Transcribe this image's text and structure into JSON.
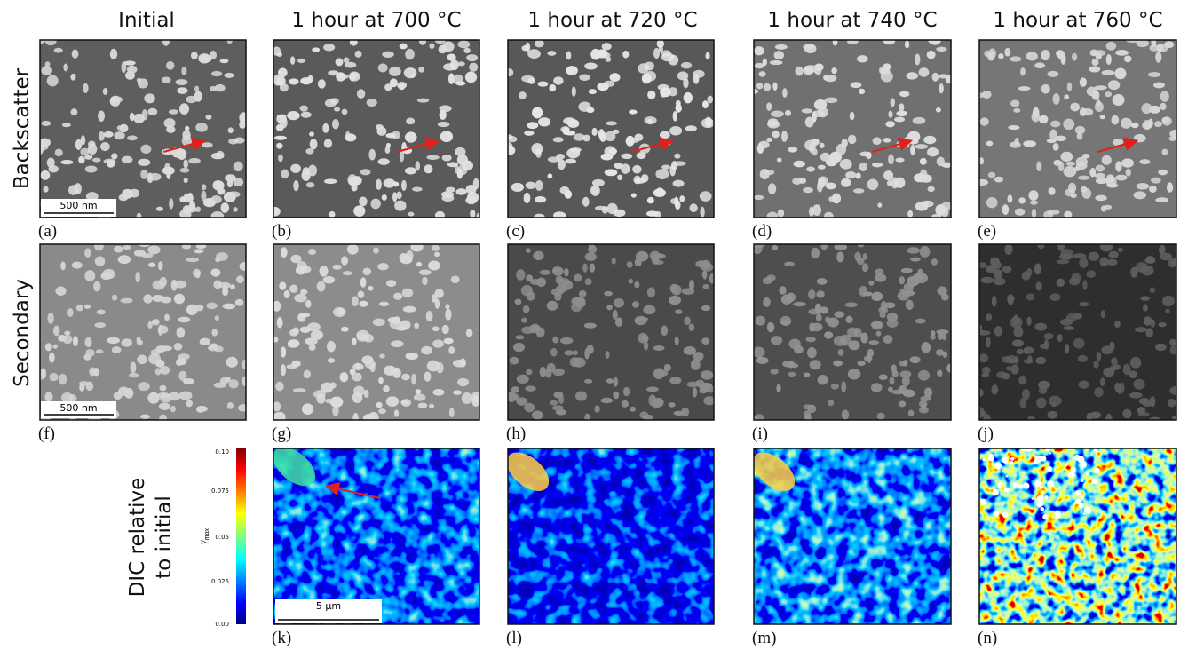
{
  "column_headers": [
    "Initial",
    "1 hour at 700 °C",
    "1 hour at 720 °C",
    "1 hour at 740 °C",
    "1 hour at 760 °C"
  ],
  "row_labels": {
    "backscatter": "Backscatter",
    "secondary": "Secondary",
    "dic": [
      "DIC relative",
      "to initial"
    ]
  },
  "panel_labels": [
    "(a)",
    "(b)",
    "(c)",
    "(d)",
    "(e)",
    "(f)",
    "(g)",
    "(h)",
    "(i)",
    "(j)",
    "(k)",
    "(l)",
    "(m)",
    "(n)"
  ],
  "scale_bars": {
    "backscatter": "500 nm",
    "secondary": "500 nm",
    "dic": "5 µm"
  },
  "colorbar": {
    "symbol": "γ",
    "subscript": "max",
    "ticks": [
      "0.10",
      "0.075",
      "0.05",
      "0.025",
      "0.00"
    ]
  }
}
